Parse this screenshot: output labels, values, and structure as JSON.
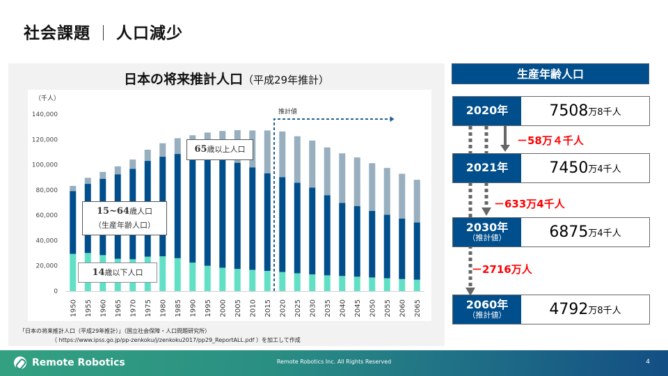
{
  "header": {
    "title_left": "社会課題",
    "title_right": "人口減少"
  },
  "chart_panel": {
    "title_main": "日本の将来推計人口",
    "title_sub": "（平成29年推計）",
    "source_line1": "「日本の将来推計人口（平成29年推計）」（国立社会保障・人口問題研究所）",
    "source_line2": "（ https://www.ipss.go.jp/pp-zenkoku/j/zenkoku2017/pp29_ReportALL.pdf ）を加工して作成",
    "labels": {
      "age65": {
        "num": "65",
        "text": "歳以上人口"
      },
      "age1564": {
        "num": "15~64",
        "text": "歳人口",
        "sub": "（生産年齢人口）"
      },
      "age14": {
        "num": "14",
        "text": "歳以下人口"
      }
    }
  },
  "chart_data": {
    "type": "bar",
    "stacked": true,
    "title": "日本の将来推計人口（平成29年推計）",
    "ylabel": "（千人）",
    "xlabel": "",
    "ylim": [
      0,
      140000
    ],
    "yticks": [
      0,
      20000,
      40000,
      60000,
      80000,
      100000,
      120000,
      140000
    ],
    "ytick_labels": [
      "0",
      "20,000",
      "40,000",
      "60,000",
      "80,000",
      "100,000",
      "120,000",
      "140,000"
    ],
    "grid": false,
    "categories": [
      "1950",
      "1955",
      "1960",
      "1965",
      "1970",
      "1975",
      "1980",
      "1985",
      "1990",
      "1995",
      "2000",
      "2005",
      "2010",
      "2015",
      "2020",
      "2025",
      "2030",
      "2035",
      "2040",
      "2045",
      "2050",
      "2055",
      "2060",
      "2065"
    ],
    "series": [
      {
        "name": "14歳以下人口",
        "color": "#62e0c6",
        "values": [
          29430,
          30120,
          28430,
          25530,
          25150,
          27220,
          27510,
          26030,
          22490,
          20010,
          18470,
          17520,
          16800,
          15950,
          15070,
          14070,
          13210,
          12460,
          11940,
          11380,
          10770,
          10120,
          9510,
          8980
        ]
      },
      {
        "name": "15~64歳人口",
        "color": "#004e8c",
        "values": [
          49660,
          54730,
          60470,
          66930,
          71570,
          75810,
          78830,
          82510,
          85900,
          87170,
          86220,
          84090,
          81030,
          77280,
          75090,
          71700,
          68750,
          63430,
          57870,
          55840,
          52750,
          50280,
          47930,
          45290
        ]
      },
      {
        "name": "65歳以上人口",
        "color": "#97afbe",
        "values": [
          4160,
          4790,
          5400,
          6240,
          7390,
          8870,
          10650,
          12470,
          14930,
          18280,
          22040,
          25760,
          29250,
          33870,
          36190,
          36770,
          37160,
          37820,
          39210,
          38560,
          37680,
          37040,
          35400,
          33810
        ]
      }
    ],
    "annotation": {
      "text": "推計値",
      "from_category": "2020",
      "to_category": "2065"
    }
  },
  "right_panel": {
    "header": "生産年齢人口",
    "rows": [
      {
        "year": "2020年",
        "estimate": "",
        "big": "7508",
        "unit1": "万",
        "small": "8千人"
      },
      {
        "year": "2021年",
        "estimate": "",
        "big": "7450",
        "unit1": "万",
        "small": "4千人"
      },
      {
        "year": "2030年",
        "estimate": "（推計値）",
        "big": "6875",
        "unit1": "万",
        "small": "4千人"
      },
      {
        "year": "2060年",
        "estimate": "（推計値）",
        "big": "4792",
        "unit1": "万",
        "small": "8千人"
      }
    ],
    "diffs": [
      "－58万４千人",
      "－633万4千人",
      "－2716万人"
    ]
  },
  "footer": {
    "brand": "Remote Robotics",
    "copyright": "Remote Robotics Inc. All Rights Reserved",
    "page": "4"
  }
}
